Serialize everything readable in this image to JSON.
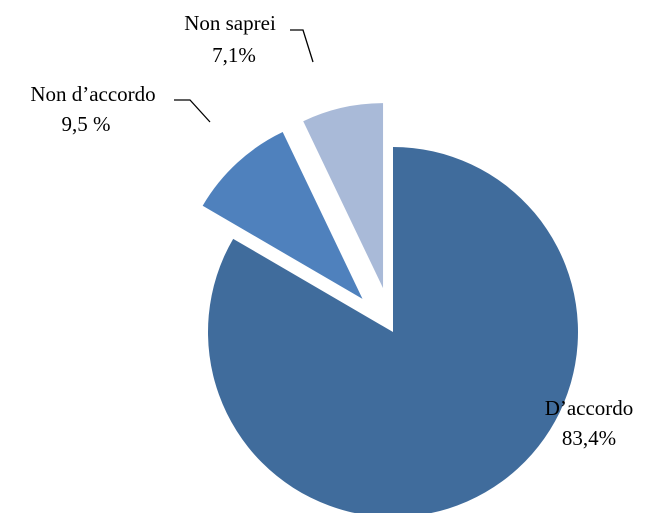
{
  "chart_data": {
    "type": "pie",
    "title": "",
    "slices": [
      {
        "label": "D’accordo",
        "value_label": "83,4%",
        "value": 83.4,
        "color": "#406c9c"
      },
      {
        "label": "Non d’accordo",
        "value_label": "9,5 %",
        "value": 9.5,
        "color": "#4f81bd"
      },
      {
        "label": "Non saprei",
        "value_label": "7,1%",
        "value": 7.1,
        "color": "#a9bad8"
      }
    ],
    "exploded": true,
    "legend": "none"
  }
}
